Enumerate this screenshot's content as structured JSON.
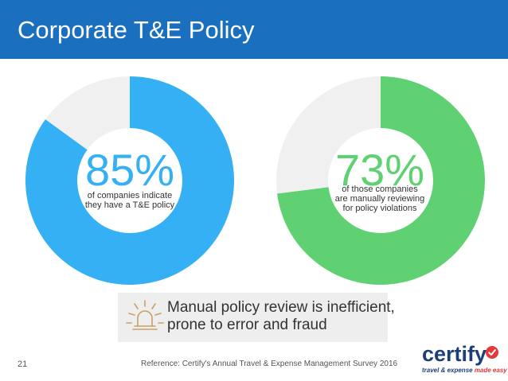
{
  "header": {
    "title": "Corporate T&E Policy"
  },
  "chart_data": [
    {
      "type": "pie",
      "subtype": "donut",
      "values": [
        85,
        15
      ],
      "labels": [
        "85%",
        ""
      ],
      "annotation": "of companies indicate they have a T&E policy",
      "colors": [
        "#35b0f4",
        "#f0f0f0"
      ]
    },
    {
      "type": "pie",
      "subtype": "donut",
      "values": [
        73,
        27
      ],
      "labels": [
        "73%",
        ""
      ],
      "annotation": "of those companies are manually reviewing for policy violations",
      "colors": [
        "#5fd172",
        "#f0f0f0"
      ]
    }
  ],
  "stat1": {
    "value": "85%",
    "line1": "of companies indicate",
    "line2": "they have a T&E policy"
  },
  "stat2": {
    "value": "73%",
    "line1": "of those companies",
    "line2": "are manually reviewing",
    "line3": "for policy violations"
  },
  "callout": {
    "icon": "alarm-light-icon",
    "line1": "Manual policy review is inefficient,",
    "line2": "prone to error and fraud"
  },
  "footer": {
    "page_number": "21",
    "reference": "Reference: Certify's Annual Travel & Expense Management Survey 2016"
  },
  "logo": {
    "word": "certify",
    "tagline_start": "travel & expense ",
    "tagline_end": "made easy",
    "check_color": "#e2393a"
  }
}
